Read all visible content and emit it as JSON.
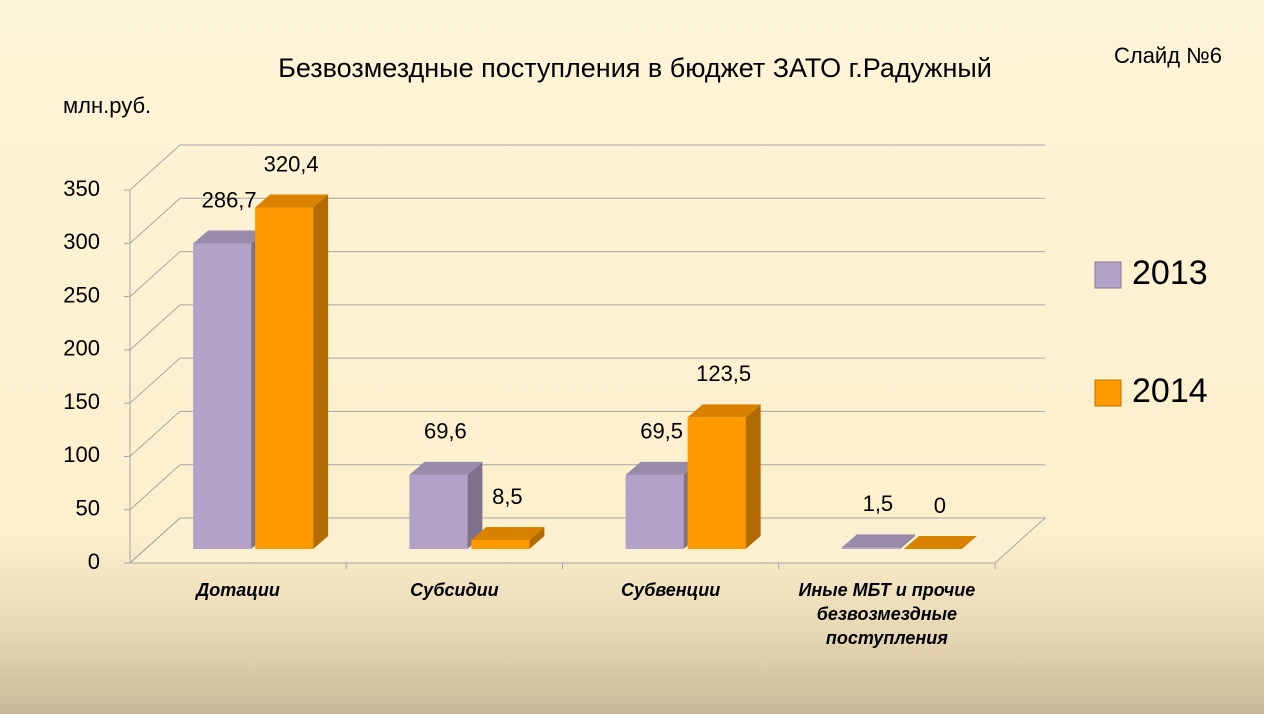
{
  "chart_data": {
    "type": "bar3d",
    "title": "Безвозмездные поступления в бюджет ЗАТО г.Радужный",
    "annotation": "Слайд №6",
    "y_label": "млн.руб.",
    "categories": [
      "Дотации",
      "Субсидии",
      "Субвенции",
      "Иные МБТ и прочие безвозмездные поступления"
    ],
    "series": [
      {
        "name": "2013",
        "color": "#b3a2c7",
        "values": [
          286.7,
          69.6,
          69.5,
          1.5
        ],
        "value_labels": [
          "286,7",
          "69,6",
          "69,5",
          "1,5"
        ]
      },
      {
        "name": "2014",
        "color": "#ff9900",
        "values": [
          320.4,
          8.5,
          123.5,
          0
        ],
        "value_labels": [
          "320,4",
          "8,5",
          "123,5",
          "0"
        ]
      }
    ],
    "ylim": [
      0,
      350
    ],
    "yticks": [
      0,
      50,
      100,
      150,
      200,
      250,
      300,
      350
    ],
    "grid": true,
    "legend": "right"
  }
}
